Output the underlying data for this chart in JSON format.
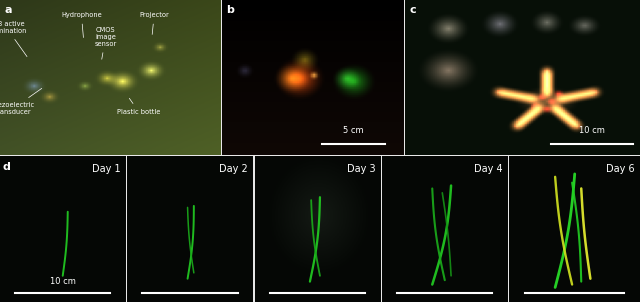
{
  "figure_width": 6.4,
  "figure_height": 3.02,
  "dpi": 100,
  "bg": "#e8e8e8",
  "panels": {
    "a": [
      0.0,
      0.487,
      0.344,
      0.513
    ],
    "b": [
      0.347,
      0.487,
      0.283,
      0.513
    ],
    "c": [
      0.633,
      0.487,
      0.367,
      0.513
    ],
    "d1": [
      0.0,
      0.0,
      0.196,
      0.482
    ],
    "d2": [
      0.199,
      0.0,
      0.196,
      0.482
    ],
    "d3": [
      0.398,
      0.0,
      0.196,
      0.482
    ],
    "d4": [
      0.597,
      0.0,
      0.196,
      0.482
    ],
    "d6": [
      0.796,
      0.0,
      0.204,
      0.482
    ]
  },
  "panel_a_bg": "#4a5a3a",
  "panel_b_bg": "#080808",
  "panel_c_bg": "#081008",
  "panel_d_bg": "#050805",
  "label_fs": 8,
  "annot_fs": 4.8,
  "day_fs": 7,
  "scale_fs": 6
}
